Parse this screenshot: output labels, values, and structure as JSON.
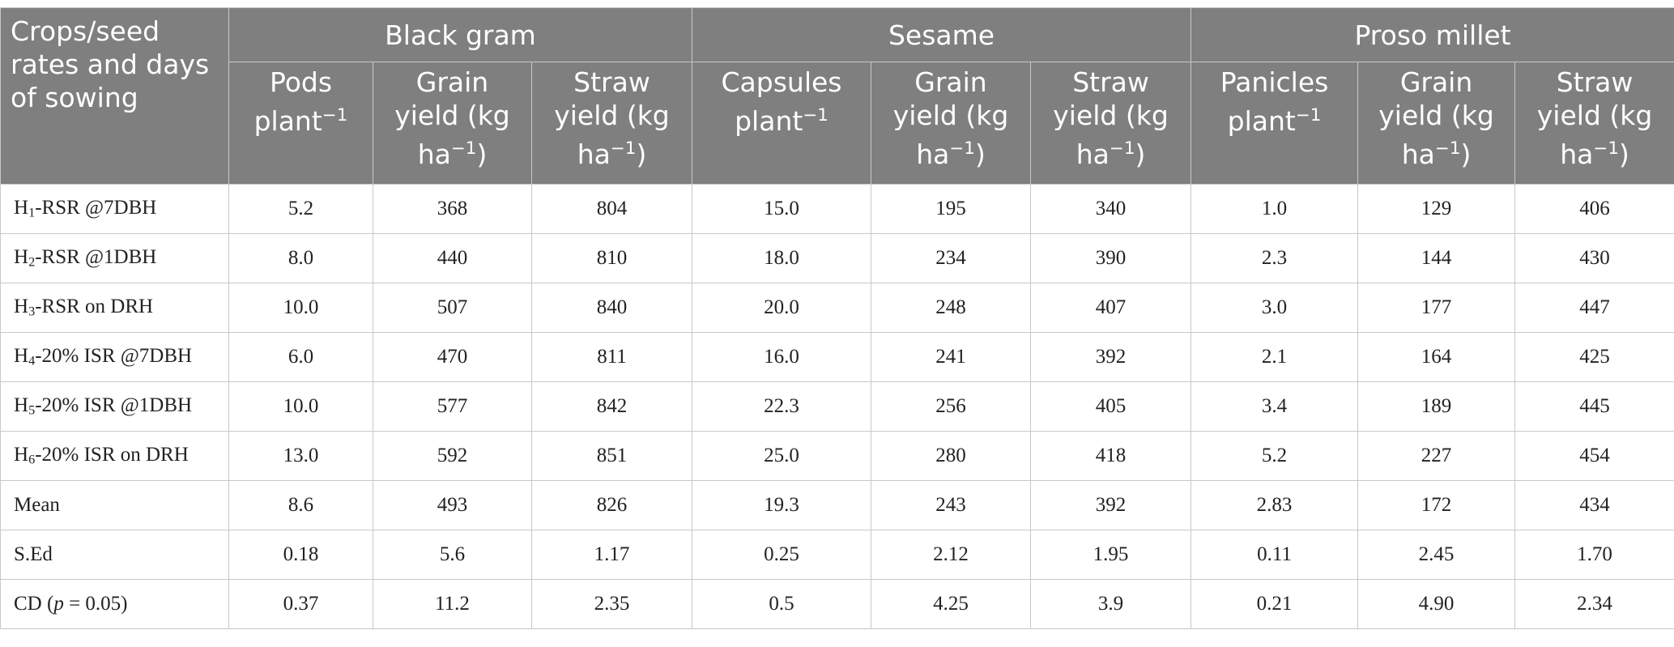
{
  "table": {
    "corner": "Crops/seed rates and days of sowing",
    "groups": [
      "Black gram",
      "Sesame",
      "Proso millet"
    ],
    "subheaders": [
      {
        "main": "Pods plant",
        "sup": "−1"
      },
      {
        "main": "Grain yield (kg ha",
        "sup": "−1",
        "tail": ")"
      },
      {
        "main": "Straw yield (kg ha",
        "sup": "−1",
        "tail": ")"
      },
      {
        "main": "Capsules plant",
        "sup": "−1"
      },
      {
        "main": "Grain yield (kg ha",
        "sup": "−1",
        "tail": ")"
      },
      {
        "main": "Straw yield (kg ha",
        "sup": "−1",
        "tail": ")"
      },
      {
        "main": "Panicles plant",
        "sup": "−1"
      },
      {
        "main": "Grain yield (kg ha",
        "sup": "−1",
        "tail": ")"
      },
      {
        "main": "Straw yield (kg ha",
        "sup": "−1",
        "tail": ")"
      }
    ],
    "rows": [
      {
        "label": {
          "main": "H",
          "sub": "1",
          "tail": "-RSR @7DBH"
        },
        "cells": [
          "5.2",
          "368",
          "804",
          "15.0",
          "195",
          "340",
          "1.0",
          "129",
          "406"
        ]
      },
      {
        "label": {
          "main": "H",
          "sub": "2",
          "tail": "-RSR @1DBH"
        },
        "cells": [
          "8.0",
          "440",
          "810",
          "18.0",
          "234",
          "390",
          "2.3",
          "144",
          "430"
        ]
      },
      {
        "label": {
          "main": "H",
          "sub": "3",
          "tail": "-RSR on DRH"
        },
        "cells": [
          "10.0",
          "507",
          "840",
          "20.0",
          "248",
          "407",
          "3.0",
          "177",
          "447"
        ]
      },
      {
        "label": {
          "main": "H",
          "sub": "4",
          "tail": "-20% ISR @7DBH"
        },
        "cells": [
          "6.0",
          "470",
          "811",
          "16.0",
          "241",
          "392",
          "2.1",
          "164",
          "425"
        ]
      },
      {
        "label": {
          "main": "H",
          "sub": "5",
          "tail": "-20% ISR @1DBH"
        },
        "cells": [
          "10.0",
          "577",
          "842",
          "22.3",
          "256",
          "405",
          "3.4",
          "189",
          "445"
        ]
      },
      {
        "label": {
          "main": "H",
          "sub": "6",
          "tail": "-20% ISR on DRH"
        },
        "cells": [
          "13.0",
          "592",
          "851",
          "25.0",
          "280",
          "418",
          "5.2",
          "227",
          "454"
        ]
      },
      {
        "label": {
          "main": "Mean"
        },
        "cells": [
          "8.6",
          "493",
          "826",
          "19.3",
          "243",
          "392",
          "2.83",
          "172",
          "434"
        ]
      },
      {
        "label": {
          "main": "S.Ed"
        },
        "cells": [
          "0.18",
          "5.6",
          "1.17",
          "0.25",
          "2.12",
          "1.95",
          "0.11",
          "2.45",
          "1.70"
        ]
      },
      {
        "label": {
          "main": "CD (",
          "italic": "p",
          "tail": " = 0.05)"
        },
        "cells": [
          "0.37",
          "11.2",
          "2.35",
          "0.5",
          "4.25",
          "3.9",
          "0.21",
          "4.90",
          "2.34"
        ]
      }
    ]
  }
}
